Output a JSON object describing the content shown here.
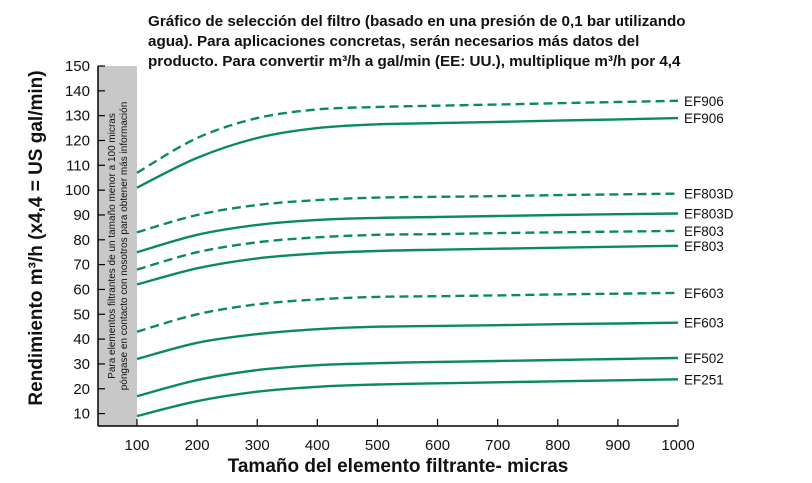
{
  "title_lines": [
    "Gráfico de selección del filtro (basado en una presión de 0,1 bar utilizando",
    "agua). Para aplicaciones concretas, serán necesarios más datos del",
    "producto. Para convertir m³/h a gal/min (EE: UU.), multiplique m³/h por 4,4"
  ],
  "note_lines": [
    "Para elementos filtrantes de un tamaño menor a 100 micras",
    "póngase en contacto con nosotros para obtener más información"
  ],
  "colors": {
    "line": "#0b8a62",
    "band": "#c8c8c8",
    "axis": "#000000"
  },
  "chart_data": {
    "type": "line",
    "title": "Gráfico de selección del filtro (basado en una presión de 0,1 bar utilizando agua). Para aplicaciones concretas, serán necesarios más datos del producto. Para convertir m³/h a gal/min (EE: UU.), multiplique m³/h por 4,4",
    "xlabel": "Tamaño del elemento filtrante- micras",
    "ylabel": "Rendimiento m³/h (x4,4 = US gal/min)",
    "xlim": [
      100,
      1000
    ],
    "ylim": [
      0,
      150
    ],
    "xticks": [
      100,
      200,
      300,
      400,
      500,
      600,
      700,
      800,
      900,
      1000
    ],
    "yticks": [
      10,
      20,
      30,
      40,
      50,
      60,
      70,
      80,
      90,
      100,
      110,
      120,
      130,
      140,
      150
    ],
    "grid": false,
    "series": [
      {
        "name": "EF906",
        "style": "dashed",
        "x": [
          100,
          200,
          300,
          400,
          500,
          600,
          700,
          800,
          900,
          1000
        ],
        "y": [
          107,
          121,
          129,
          132.5,
          133.5,
          134,
          134.5,
          135,
          135.5,
          136
        ]
      },
      {
        "name": "EF906",
        "style": "solid",
        "x": [
          100,
          200,
          300,
          400,
          500,
          600,
          700,
          800,
          900,
          1000
        ],
        "y": [
          101,
          113,
          121,
          125,
          126.5,
          127,
          127.5,
          128,
          128.5,
          129
        ]
      },
      {
        "name": "EF803D",
        "style": "dashed",
        "x": [
          100,
          200,
          300,
          400,
          500,
          600,
          700,
          800,
          900,
          1000
        ],
        "y": [
          83,
          90,
          94,
          96,
          97,
          97.3,
          97.6,
          98,
          98.3,
          98.6
        ]
      },
      {
        "name": "EF803D",
        "style": "solid",
        "x": [
          100,
          200,
          300,
          400,
          500,
          600,
          700,
          800,
          900,
          1000
        ],
        "y": [
          75,
          82,
          86,
          88,
          88.8,
          89.2,
          89.6,
          90,
          90.3,
          90.6
        ]
      },
      {
        "name": "EF803",
        "style": "dashed",
        "x": [
          100,
          200,
          300,
          400,
          500,
          600,
          700,
          800,
          900,
          1000
        ],
        "y": [
          68,
          75,
          79,
          81,
          82,
          82.3,
          82.7,
          83,
          83.3,
          83.6
        ]
      },
      {
        "name": "EF803",
        "style": "solid",
        "x": [
          100,
          200,
          300,
          400,
          500,
          600,
          700,
          800,
          900,
          1000
        ],
        "y": [
          62,
          68.5,
          72.5,
          74.5,
          75.5,
          76,
          76.4,
          76.8,
          77.2,
          77.6
        ]
      },
      {
        "name": "EF603",
        "style": "dashed",
        "x": [
          100,
          200,
          300,
          400,
          500,
          600,
          700,
          800,
          900,
          1000
        ],
        "y": [
          43,
          50,
          54,
          56,
          57,
          57.3,
          57.6,
          58,
          58.3,
          58.6
        ]
      },
      {
        "name": "EF603",
        "style": "solid",
        "x": [
          100,
          200,
          300,
          400,
          500,
          600,
          700,
          800,
          900,
          1000
        ],
        "y": [
          32,
          38.5,
          42,
          44,
          45,
          45.3,
          45.6,
          46,
          46.3,
          46.6
        ]
      },
      {
        "name": "EF502",
        "style": "solid",
        "x": [
          100,
          200,
          300,
          400,
          500,
          600,
          700,
          800,
          900,
          1000
        ],
        "y": [
          17,
          23.5,
          27.5,
          29.5,
          30.3,
          30.8,
          31.2,
          31.6,
          32,
          32.4
        ]
      },
      {
        "name": "EF251",
        "style": "solid",
        "x": [
          100,
          200,
          300,
          400,
          500,
          600,
          700,
          800,
          900,
          1000
        ],
        "y": [
          9,
          15,
          18.8,
          20.8,
          21.7,
          22.2,
          22.6,
          23,
          23.4,
          23.8
        ]
      }
    ]
  }
}
